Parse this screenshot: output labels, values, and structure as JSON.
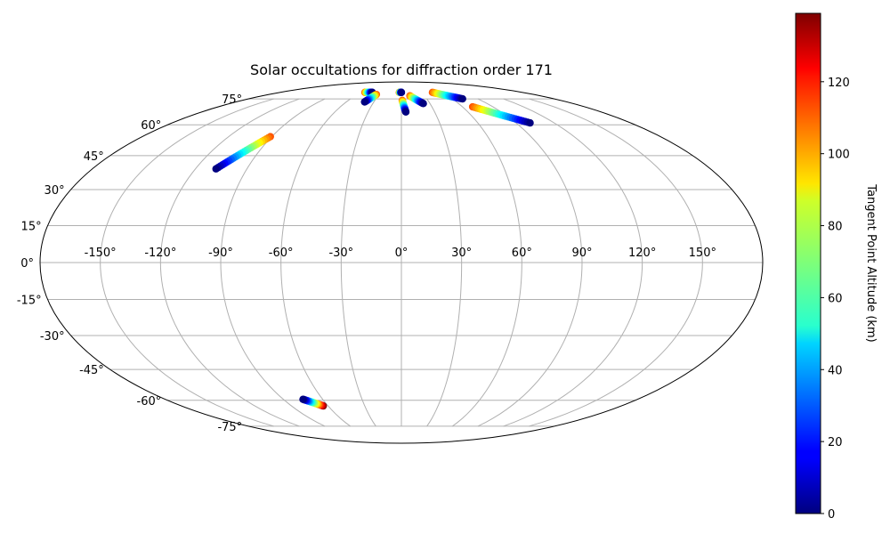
{
  "chart_data": {
    "type": "scatter",
    "projection": "Mollweide",
    "title": "Solar occultations for diffraction order 171",
    "grid": true,
    "xlim": [
      -180,
      180
    ],
    "ylim": [
      -90,
      90
    ],
    "lon_ticks": [
      -150,
      -120,
      -90,
      -60,
      -30,
      0,
      30,
      60,
      90,
      120,
      150
    ],
    "lon_tick_labels": [
      "-150°",
      "-120°",
      "-90°",
      "-60°",
      "-30°",
      "0°",
      "30°",
      "60°",
      "90°",
      "120°",
      "150°"
    ],
    "lat_ticks": [
      75,
      60,
      45,
      30,
      15,
      0,
      -15,
      -30,
      -45,
      -60,
      -75
    ],
    "lat_tick_labels": [
      "75°",
      "60°",
      "45°",
      "30°",
      "15°",
      "0°",
      "-15°",
      "-30°",
      "-45°",
      "-60°",
      "-75°"
    ],
    "colorbar": {
      "label": "Tangent Point Altitude (km)",
      "colormap": "jet",
      "range": [
        0,
        139
      ],
      "ticks": [
        0,
        20,
        40,
        60,
        80,
        100,
        120
      ],
      "tick_labels": [
        "0",
        "20",
        "40",
        "60",
        "80",
        "100",
        "120"
      ]
    },
    "series": [
      {
        "lon_range": [
          -108,
          -91
        ],
        "lat_range": [
          39,
          54
        ],
        "alt_range": [
          0,
          110
        ]
      },
      {
        "lon_range": [
          -75,
          -64
        ],
        "lat_range": [
          -59.5,
          -63
        ],
        "alt_range": [
          0,
          139
        ]
      },
      {
        "lon_range": [
          -54,
          -43
        ],
        "lat_range": [
          79.5,
          79.5
        ],
        "alt_range": [
          110,
          0
        ]
      },
      {
        "lon_range": [
          -40,
          -34
        ],
        "lat_range": [
          73,
          78
        ],
        "alt_range": [
          0,
          110
        ]
      },
      {
        "lon_range": [
          -3,
          0
        ],
        "lat_range": [
          79.5,
          79.5
        ],
        "alt_range": [
          110,
          0
        ]
      },
      {
        "lon_range": [
          1,
          4
        ],
        "lat_range": [
          74,
          67
        ],
        "alt_range": [
          110,
          0
        ]
      },
      {
        "lon_range": [
          11,
          23
        ],
        "lat_range": [
          77,
          72
        ],
        "alt_range": [
          110,
          0
        ]
      },
      {
        "lon_range": [
          46,
          72
        ],
        "lat_range": [
          79.5,
          75
        ],
        "alt_range": [
          110,
          0
        ]
      },
      {
        "lon_range": [
          70,
          101
        ],
        "lat_range": [
          70,
          61
        ],
        "alt_range": [
          110,
          0
        ]
      }
    ]
  }
}
